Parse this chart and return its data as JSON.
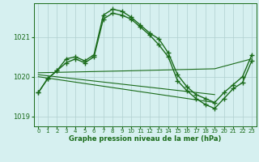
{
  "title": "Graphe pression niveau de la mer (hPa)",
  "bg_color": "#d6f0f0",
  "grid_color": "#b0d0d0",
  "line_color": "#1a6b1a",
  "xlim": [
    -0.5,
    23.5
  ],
  "ylim": [
    1018.75,
    1021.85
  ],
  "yticks": [
    1019,
    1020,
    1021
  ],
  "xticks": [
    0,
    1,
    2,
    3,
    4,
    5,
    6,
    7,
    8,
    9,
    10,
    11,
    12,
    13,
    14,
    15,
    16,
    17,
    18,
    19,
    20,
    21,
    22,
    23
  ],
  "series": [
    {
      "name": "main_line",
      "x": [
        0,
        1,
        2,
        3,
        4,
        5,
        6,
        7,
        8,
        9,
        10,
        11,
        12,
        13,
        14,
        15,
        16,
        17,
        18,
        19,
        20,
        21,
        22,
        23
      ],
      "y": [
        1019.6,
        1019.95,
        1020.15,
        1020.45,
        1020.5,
        1020.4,
        1020.55,
        1021.55,
        1021.7,
        1021.65,
        1021.5,
        1021.3,
        1021.1,
        1020.95,
        1020.6,
        1020.05,
        1019.75,
        1019.55,
        1019.45,
        1019.35,
        1019.6,
        1019.8,
        1020.0,
        1020.55
      ],
      "marker": "+",
      "markersize": 4,
      "linewidth": 1.0
    },
    {
      "name": "second_line",
      "x": [
        0,
        1,
        2,
        3,
        4,
        5,
        6,
        7,
        8,
        9,
        10,
        11,
        12,
        13,
        14,
        15,
        16,
        17,
        18,
        19,
        20,
        21,
        22,
        23
      ],
      "y": [
        1019.6,
        1019.95,
        1020.15,
        1020.35,
        1020.45,
        1020.35,
        1020.5,
        1021.45,
        1021.6,
        1021.55,
        1021.45,
        1021.25,
        1021.05,
        1020.8,
        1020.5,
        1019.9,
        1019.65,
        1019.45,
        1019.3,
        1019.2,
        1019.45,
        1019.7,
        1019.85,
        1020.4
      ],
      "marker": "+",
      "markersize": 4,
      "linewidth": 1.0
    },
    {
      "name": "flat_line",
      "x": [
        0,
        10,
        19,
        23
      ],
      "y": [
        1020.1,
        1020.15,
        1020.2,
        1020.45
      ],
      "marker": null,
      "markersize": 0,
      "linewidth": 0.8
    },
    {
      "name": "decline_line1",
      "x": [
        0,
        19
      ],
      "y": [
        1020.05,
        1019.55
      ],
      "marker": null,
      "markersize": 0,
      "linewidth": 0.8
    },
    {
      "name": "decline_line2",
      "x": [
        0,
        19
      ],
      "y": [
        1020.0,
        1019.35
      ],
      "marker": null,
      "markersize": 0,
      "linewidth": 0.8
    }
  ]
}
